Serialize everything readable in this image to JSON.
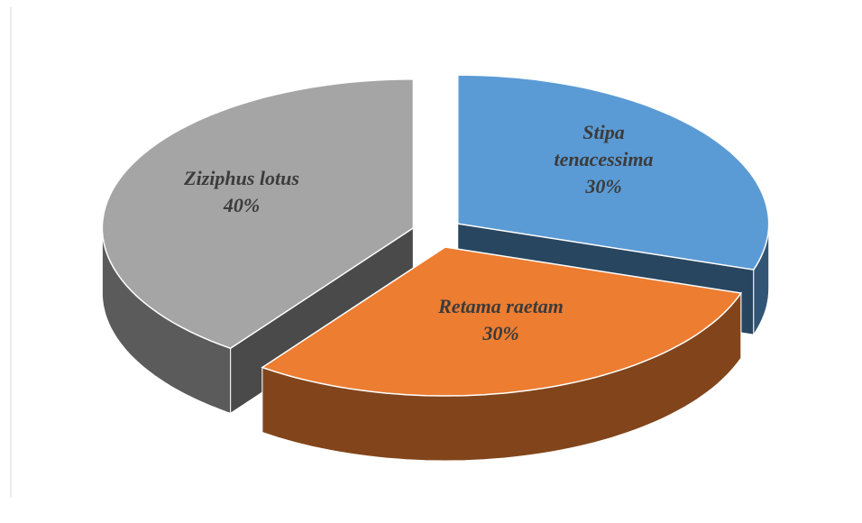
{
  "chart_data": {
    "type": "pie3d",
    "categories": [
      "Stipa tenacessima",
      "Retama raetam",
      "Ziziphus lotus"
    ],
    "values": [
      30,
      30,
      40
    ],
    "value_labels": [
      "30%",
      "30%",
      "40%"
    ],
    "colors": [
      "#5b9bd5",
      "#ed7d31",
      "#a5a5a5"
    ]
  }
}
